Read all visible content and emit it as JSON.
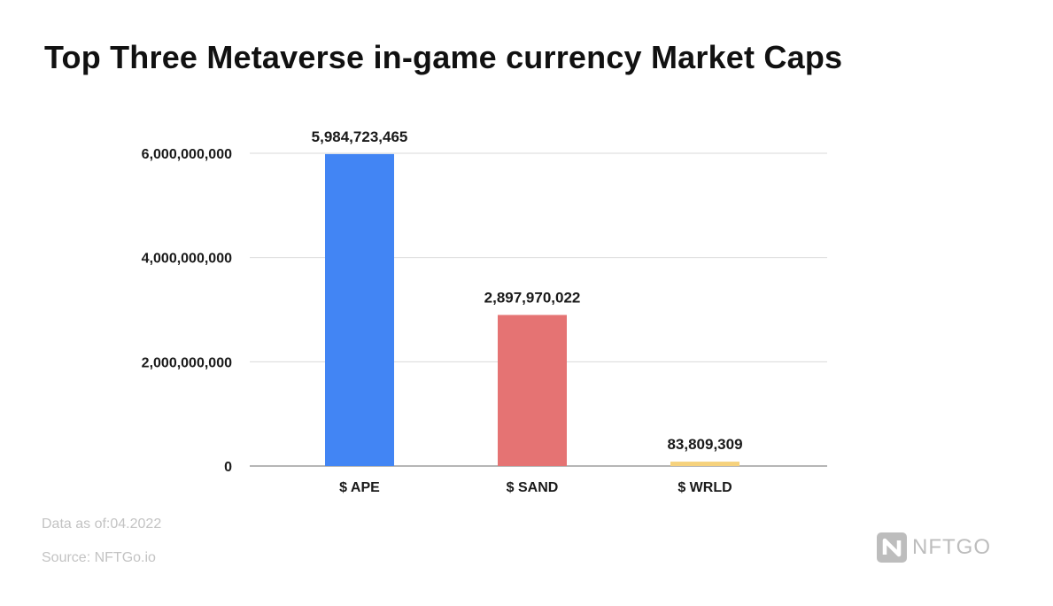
{
  "title": "Top Three Metaverse in-game currency Market Caps",
  "footer": {
    "date_note": "Data as of:04.2022",
    "source_note": "Source: NFTGo.io"
  },
  "logo": {
    "text": "NFTGO",
    "icon": "nftgo-logo-icon"
  },
  "colors": {
    "ape": "#4285f4",
    "sand": "#e57373",
    "wrld": "#f6d27d",
    "grid": "#d9d9d9",
    "baseline": "#9e9e9e",
    "text": "#1a1a1a",
    "muted": "#c3c3c3"
  },
  "chart_data": {
    "type": "bar",
    "title": "Top Three Metaverse in-game currency Market Caps",
    "categories": [
      "$ APE",
      "$ SAND",
      "$ WRLD"
    ],
    "values": [
      5984723465,
      2897970022,
      83809309
    ],
    "value_labels": [
      "5,984,723,465",
      "2,897,970,022",
      "83,809,309"
    ],
    "ylim": [
      0,
      6000000000
    ],
    "yticks": [
      0,
      2000000000,
      4000000000,
      6000000000
    ],
    "ytick_labels": [
      "0",
      "2,000,000,000",
      "4,000,000,000",
      "6,000,000,000"
    ],
    "xlabel": "",
    "ylabel": "",
    "grid": true,
    "legend": "none"
  }
}
